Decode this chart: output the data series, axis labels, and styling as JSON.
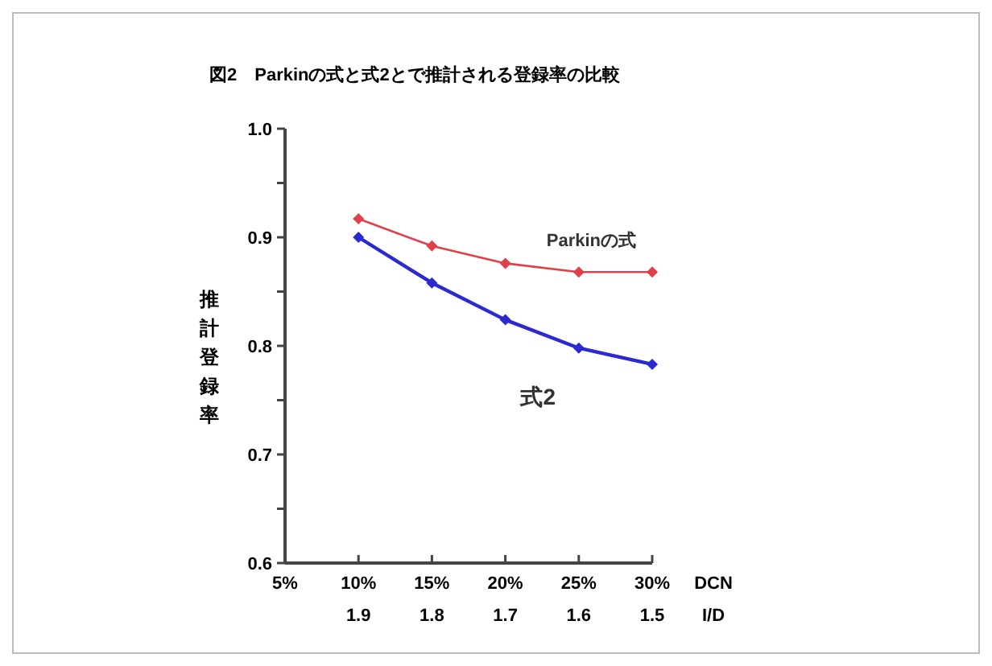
{
  "chart_data": {
    "type": "line",
    "title": "図2　Parkinの式と式2とで推計される登録率の比較",
    "ylabel": "推計登録率",
    "xlabel": "DCN\nI/D",
    "categories": [
      "5%",
      "10%\n1.9",
      "15%\n1.8",
      "20%\n1.7",
      "25%\n1.6",
      "30%\n1.5"
    ],
    "series": [
      {
        "name": "Parkinの式",
        "color": "#e0404a",
        "values": [
          null,
          0.917,
          0.892,
          0.876,
          0.868,
          0.868
        ]
      },
      {
        "name": "式2",
        "color": "#2a2ad0",
        "values": [
          null,
          0.9,
          0.858,
          0.824,
          0.798,
          0.783
        ]
      }
    ],
    "ylim": [
      0.6,
      1.0
    ],
    "yticks": [
      0.6,
      {
        "value": 0.65,
        "label": null
      },
      0.7,
      {
        "value": 0.75,
        "label": null
      },
      0.8,
      {
        "value": 0.85,
        "label": null
      },
      0.9,
      {
        "value": 0.95,
        "label": null
      },
      {
        "value": 1.0,
        "label": "1.0"
      }
    ],
    "marker": "diamond",
    "line_style": "solid",
    "grid": false
  }
}
